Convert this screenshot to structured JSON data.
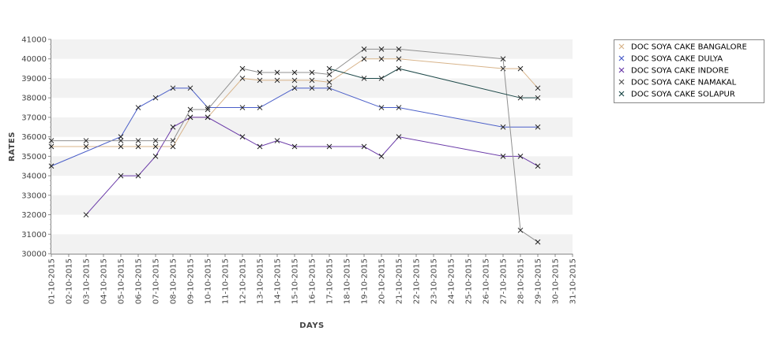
{
  "chart_data": {
    "type": "line",
    "xlabel": "DAYS",
    "ylabel": "RATES",
    "ylim": [
      30000,
      41000
    ],
    "y_ticks": [
      30000,
      31000,
      32000,
      33000,
      34000,
      35000,
      36000,
      37000,
      38000,
      39000,
      40000,
      41000
    ],
    "x_ticks": [
      "01-10-2015",
      "02-10-2015",
      "03-10-2015",
      "04-10-2015",
      "05-10-2015",
      "06-10-2015",
      "07-10-2015",
      "08-10-2015",
      "09-10-2015",
      "10-10-2015",
      "11-10-2015",
      "12-10-2015",
      "13-10-2015",
      "14-10-2015",
      "15-10-2015",
      "16-10-2015",
      "17-10-2015",
      "18-10-2015",
      "19-10-2015",
      "20-10-2015",
      "21-10-2015",
      "22-10-2015",
      "23-10-2015",
      "24-10-2015",
      "25-10-2015",
      "26-10-2015",
      "27-10-2015",
      "28-10-2015",
      "29-10-2015",
      "30-10-2015",
      "31-10-2015"
    ],
    "grid": "alternating horizontal bands",
    "legend_position": "right",
    "marker": "x",
    "series": [
      {
        "name": "DOC SOYA CAKE BANGALORE",
        "color": "#d8b48a",
        "points": [
          [
            1,
            35500
          ],
          [
            3,
            35500
          ],
          [
            5,
            35500
          ],
          [
            6,
            35500
          ],
          [
            7,
            35500
          ],
          [
            8,
            35500
          ],
          [
            9,
            37000
          ],
          [
            10,
            37000
          ],
          [
            12,
            39000
          ],
          [
            13,
            38900
          ],
          [
            14,
            38900
          ],
          [
            15,
            38900
          ],
          [
            16,
            38900
          ],
          [
            17,
            38800
          ],
          [
            19,
            40000
          ],
          [
            20,
            40000
          ],
          [
            21,
            40000
          ],
          [
            27,
            39500
          ],
          [
            28,
            39500
          ],
          [
            29,
            38500
          ]
        ]
      },
      {
        "name": "DOC SOYA CAKE DULYA",
        "color": "#4a5ec8",
        "points": [
          [
            1,
            34500
          ],
          [
            5,
            36000
          ],
          [
            6,
            37500
          ],
          [
            7,
            38000
          ],
          [
            8,
            38500
          ],
          [
            9,
            38500
          ],
          [
            10,
            37500
          ],
          [
            12,
            37500
          ],
          [
            13,
            37500
          ],
          [
            15,
            38500
          ],
          [
            16,
            38500
          ],
          [
            17,
            38500
          ],
          [
            20,
            37500
          ],
          [
            21,
            37500
          ],
          [
            27,
            36500
          ],
          [
            29,
            36500
          ]
        ]
      },
      {
        "name": "DOC SOYA CAKE INDORE",
        "color": "#6a3aa8",
        "points": [
          [
            3,
            32000
          ],
          [
            5,
            34000
          ],
          [
            6,
            34000
          ],
          [
            7,
            35000
          ],
          [
            8,
            36500
          ],
          [
            9,
            37000
          ],
          [
            10,
            37000
          ],
          [
            12,
            36000
          ],
          [
            13,
            35500
          ],
          [
            14,
            35800
          ],
          [
            15,
            35500
          ],
          [
            17,
            35500
          ],
          [
            19,
            35500
          ],
          [
            20,
            35000
          ],
          [
            21,
            36000
          ],
          [
            27,
            35000
          ],
          [
            28,
            35000
          ],
          [
            29,
            34500
          ]
        ]
      },
      {
        "name": "DOC SOYA CAKE NAMAKAL",
        "color": "#909090",
        "points": [
          [
            1,
            35800
          ],
          [
            3,
            35800
          ],
          [
            5,
            35800
          ],
          [
            6,
            35800
          ],
          [
            7,
            35800
          ],
          [
            8,
            35800
          ],
          [
            9,
            37400
          ],
          [
            10,
            37400
          ],
          [
            12,
            39500
          ],
          [
            13,
            39300
          ],
          [
            14,
            39300
          ],
          [
            15,
            39300
          ],
          [
            16,
            39300
          ],
          [
            17,
            39200
          ],
          [
            19,
            40500
          ],
          [
            20,
            40500
          ],
          [
            21,
            40500
          ],
          [
            27,
            40000
          ],
          [
            28,
            31200
          ],
          [
            29,
            30600
          ]
        ]
      },
      {
        "name": "DOC SOYA CAKE SOLAPUR",
        "color": "#1f4a4a",
        "points": [
          [
            17,
            39500
          ],
          [
            19,
            39000
          ],
          [
            20,
            39000
          ],
          [
            21,
            39500
          ],
          [
            28,
            38000
          ],
          [
            29,
            38000
          ]
        ]
      }
    ]
  }
}
